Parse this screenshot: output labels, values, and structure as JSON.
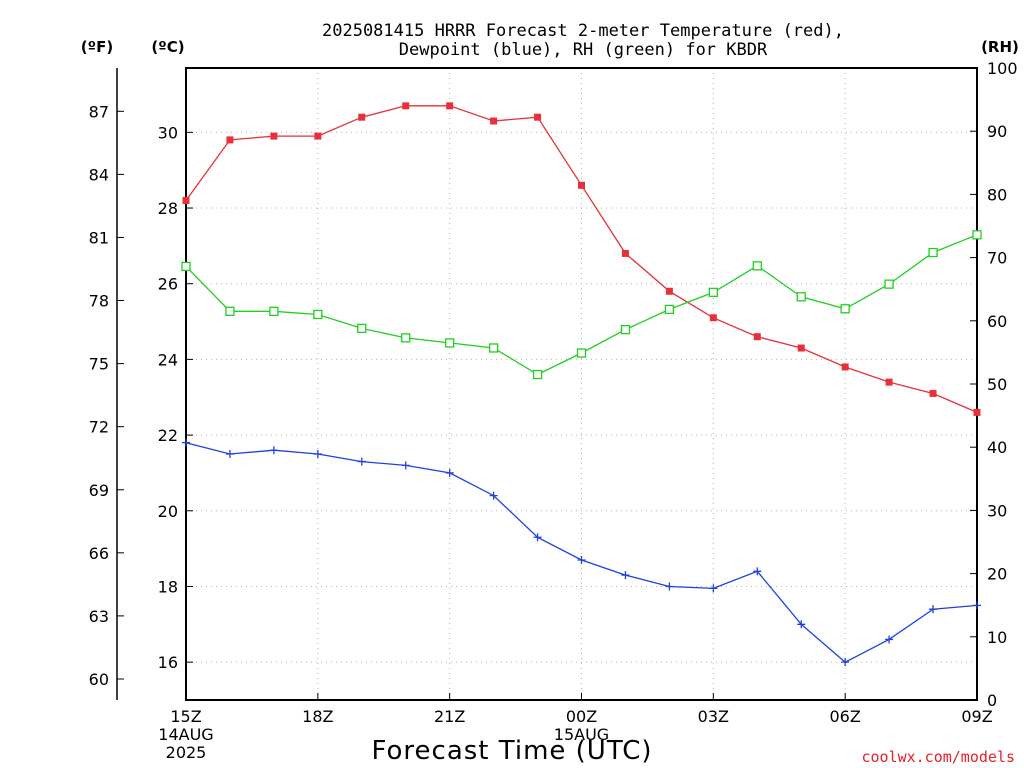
{
  "chart_data": {
    "type": "line",
    "title_lines": [
      "2025081415 HRRR Forecast 2-meter Temperature (red),",
      "Dewpoint (blue), RH (green) for KBDR"
    ],
    "xlabel": "Forecast Time (UTC)",
    "credit": "coolwx.com/models",
    "unit_labels": {
      "fahrenheit": "(ºF)",
      "celsius": "(ºC)",
      "rh": "(RH)"
    },
    "x_ticks": [
      {
        "hour": 0,
        "lines": [
          "15Z",
          "14AUG",
          "2025"
        ]
      },
      {
        "hour": 3,
        "lines": [
          "18Z"
        ]
      },
      {
        "hour": 6,
        "lines": [
          "21Z"
        ]
      },
      {
        "hour": 9,
        "lines": [
          "00Z",
          "15AUG"
        ]
      },
      {
        "hour": 12,
        "lines": [
          "03Z"
        ]
      },
      {
        "hour": 15,
        "lines": [
          "06Z"
        ]
      },
      {
        "hour": 18,
        "lines": [
          "09Z"
        ]
      }
    ],
    "xlim": [
      0,
      18
    ],
    "celsius_axis": {
      "ylim": [
        15.0,
        31.7
      ],
      "ticks": [
        16,
        18,
        20,
        22,
        24,
        26,
        28,
        30
      ]
    },
    "fahrenheit_axis": {
      "ticks": [
        60,
        63,
        66,
        69,
        72,
        75,
        78,
        81,
        84,
        87
      ]
    },
    "rh_axis": {
      "ylim": [
        0,
        100
      ],
      "ticks": [
        0,
        10,
        20,
        30,
        40,
        50,
        60,
        70,
        80,
        90,
        100
      ]
    },
    "x_hours": [
      0,
      1,
      2,
      3,
      4,
      5,
      6,
      7,
      8,
      9,
      10,
      11,
      12,
      13,
      14,
      15,
      16,
      17,
      18
    ],
    "series": [
      {
        "name": "Temperature",
        "color": "#e8303a",
        "axis": "celsius",
        "marker": "filled-square",
        "values": [
          28.2,
          29.8,
          29.9,
          29.9,
          30.4,
          30.7,
          30.7,
          30.3,
          30.4,
          28.6,
          26.8,
          25.8,
          25.1,
          24.6,
          24.3,
          23.8,
          23.4,
          23.1,
          22.6
        ]
      },
      {
        "name": "Dewpoint",
        "color": "#2040e0",
        "axis": "celsius",
        "marker": "plus",
        "values": [
          21.8,
          21.5,
          21.6,
          21.5,
          21.3,
          21.2,
          21.0,
          20.4,
          19.3,
          18.7,
          18.3,
          18.0,
          17.95,
          18.4,
          17.0,
          16.0,
          16.6,
          17.4,
          17.5
        ]
      },
      {
        "name": "RH",
        "color": "#20d020",
        "axis": "rh",
        "marker": "open-square",
        "values": [
          68.6,
          61.5,
          61.5,
          61.0,
          58.8,
          57.3,
          56.5,
          55.7,
          51.5,
          54.9,
          58.6,
          61.8,
          64.5,
          68.7,
          63.8,
          61.9,
          65.8,
          70.8,
          73.6
        ]
      }
    ]
  }
}
